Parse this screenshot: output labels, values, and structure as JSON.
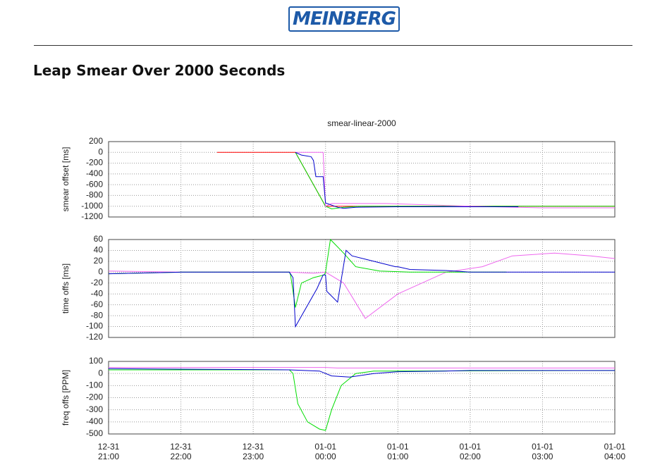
{
  "header": {
    "logo": "MEINBERG",
    "heading": "Leap Smear Over 2000 Seconds"
  },
  "chart_data": [
    {
      "type": "line",
      "title": "smear-linear-2000",
      "ylabel": "smear offset [ms]",
      "ylim": [
        -1200,
        200
      ],
      "yticks": [
        200,
        0,
        -200,
        -400,
        -600,
        -800,
        -1000,
        -1200
      ],
      "grid": true,
      "series": [
        {
          "color": "#ff0000",
          "x": [
            "12-31 22:30",
            "12-31 23:35",
            "01-01 00:00",
            "01-01 04:00"
          ],
          "values": [
            0,
            0,
            -1000,
            -1000
          ]
        },
        {
          "color": "#00dd00",
          "x": [
            "12-31 23:35",
            "01-01 00:00",
            "01-01 00:05",
            "01-01 00:15",
            "01-01 00:30",
            "01-01 04:00"
          ],
          "values": [
            0,
            -1000,
            -1050,
            -1020,
            -1000,
            -1000
          ]
        },
        {
          "color": "#ee66ee",
          "x": [
            "12-31 23:35",
            "12-31 23:58",
            "01-01 00:00",
            "01-01 00:05",
            "01-01 00:50",
            "01-01 02:00",
            "01-01 03:00",
            "01-01 04:00"
          ],
          "values": [
            0,
            0,
            -1000,
            -950,
            -950,
            -1000,
            -1030,
            -1030
          ]
        },
        {
          "color": "#0000cc",
          "x": [
            "12-31 23:35",
            "12-31 23:40",
            "12-31 23:48",
            "12-31 23:50",
            "12-31 23:52",
            "12-31 23:58",
            "01-01 00:00",
            "01-01 00:10",
            "01-01 00:15",
            "01-01 00:25",
            "01-01 01:00",
            "01-01 02:40"
          ],
          "values": [
            0,
            -50,
            -80,
            -150,
            -450,
            -450,
            -940,
            -1020,
            -1040,
            -1020,
            -1010,
            -1010
          ]
        }
      ]
    },
    {
      "type": "line",
      "ylabel": "time offs [ms]",
      "ylim": [
        -120,
        60
      ],
      "yticks": [
        60,
        40,
        20,
        0,
        -20,
        -40,
        -60,
        -80,
        -100,
        -120
      ],
      "grid": true,
      "series": [
        {
          "color": "#ee66ee",
          "x": [
            "12-31 21:00",
            "12-31 22:00",
            "12-31 23:30",
            "12-31 23:50",
            "01-01 00:00",
            "01-01 00:15",
            "01-01 00:33",
            "01-01 01:00",
            "01-01 01:40",
            "01-01 02:10",
            "01-01 02:35",
            "01-01 03:10",
            "01-01 03:40",
            "01-01 04:00"
          ],
          "values": [
            2,
            0,
            0,
            -2,
            0,
            -20,
            -85,
            -40,
            0,
            10,
            30,
            35,
            30,
            25
          ]
        },
        {
          "color": "#00dd00",
          "x": [
            "12-31 21:00",
            "12-31 22:00",
            "12-31 23:30",
            "12-31 23:31",
            "12-31 23:35",
            "12-31 23:40",
            "12-31 23:50",
            "12-31 23:59",
            "01-01 00:00",
            "01-01 00:04",
            "01-01 00:15",
            "01-01 00:25",
            "01-01 00:45",
            "01-01 01:10",
            "01-01 02:30"
          ],
          "values": [
            -3,
            0,
            0,
            -5,
            -65,
            -20,
            -10,
            -5,
            0,
            60,
            35,
            10,
            2,
            0,
            0
          ]
        },
        {
          "color": "#0000cc",
          "x": [
            "12-31 21:00",
            "12-31 22:00",
            "12-31 23:30",
            "12-31 23:33",
            "12-31 23:35",
            "12-31 23:53",
            "12-31 23:58",
            "01-01 00:00",
            "01-01 00:01",
            "01-01 00:10",
            "01-01 00:17",
            "01-01 00:22",
            "01-01 00:40",
            "01-01 00:58",
            "01-01 01:00",
            "01-01 01:10",
            "01-01 01:40",
            "01-01 02:00",
            "01-01 04:00"
          ],
          "values": [
            -3,
            0,
            0,
            -10,
            -100,
            -30,
            -5,
            -5,
            -35,
            -55,
            40,
            30,
            20,
            10,
            10,
            5,
            3,
            0,
            0
          ]
        }
      ]
    },
    {
      "type": "line",
      "ylabel": "freq offs [PPM]",
      "ylim": [
        -500,
        100
      ],
      "yticks": [
        100,
        0,
        -100,
        -200,
        -300,
        -400,
        -500
      ],
      "grid": true,
      "xlim": [
        "12-31 21:00",
        "01-01 04:00"
      ],
      "xticks": [
        "12-31 21:00",
        "12-31 22:00",
        "12-31 23:00",
        "01-01 00:00",
        "01-01 01:00",
        "01-01 02:00",
        "01-01 03:00",
        "01-01 04:00"
      ],
      "series": [
        {
          "color": "#ee66ee",
          "x": [
            "12-31 21:00",
            "01-01 00:00",
            "01-01 00:10",
            "01-01 00:30",
            "01-01 04:00"
          ],
          "values": [
            50,
            50,
            45,
            45,
            45
          ]
        },
        {
          "color": "#00dd00",
          "x": [
            "12-31 21:00",
            "12-31 23:30",
            "12-31 23:33",
            "12-31 23:37",
            "12-31 23:45",
            "12-31 23:55",
            "01-01 00:00",
            "01-01 00:05",
            "01-01 00:13",
            "01-01 00:25",
            "01-01 00:40",
            "01-01 04:00"
          ],
          "values": [
            30,
            30,
            0,
            -250,
            -400,
            -460,
            -470,
            -300,
            -100,
            0,
            20,
            25
          ]
        },
        {
          "color": "#0000cc",
          "x": [
            "12-31 21:00",
            "12-31 23:30",
            "12-31 23:55",
            "01-01 00:05",
            "01-01 00:20",
            "01-01 00:40",
            "01-01 01:00",
            "01-01 01:40",
            "01-01 02:00",
            "01-01 04:00"
          ],
          "values": [
            40,
            30,
            20,
            -20,
            -30,
            0,
            15,
            20,
            25,
            25
          ]
        }
      ]
    }
  ]
}
